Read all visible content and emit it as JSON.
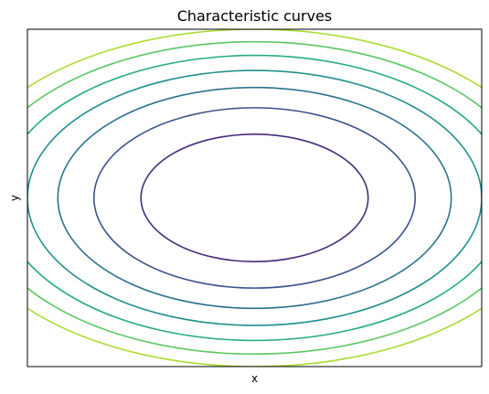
{
  "chart_data": {
    "type": "contour",
    "title": "Characteristic curves",
    "xlabel": "x",
    "ylabel": "y",
    "xlim": [
      -1,
      1
    ],
    "ylim": [
      -1,
      1
    ],
    "xticks": [],
    "yticks": [],
    "grid": false,
    "legend": "none",
    "colormap": "viridis",
    "function": "x^2 + 1.75*y^2",
    "levels": [
      {
        "value": 0.25,
        "color": "#472c7a"
      },
      {
        "value": 0.5,
        "color": "#3b528b"
      },
      {
        "value": 0.75,
        "color": "#2c728e"
      },
      {
        "value": 1.0,
        "color": "#21908d"
      },
      {
        "value": 1.25,
        "color": "#27ad81"
      },
      {
        "value": 1.5,
        "color": "#5cc863"
      },
      {
        "value": 1.75,
        "color": "#aadc32"
      }
    ]
  }
}
